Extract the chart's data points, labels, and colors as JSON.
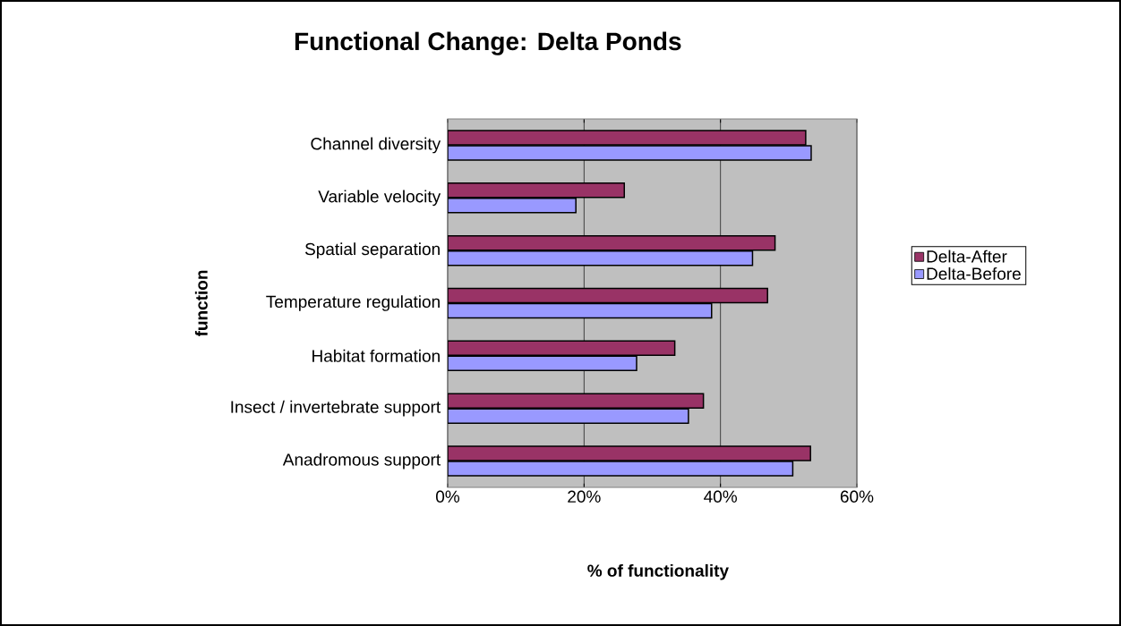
{
  "chart_data": {
    "type": "bar",
    "orientation": "horizontal",
    "title": "Functional Change: Delta Ponds",
    "xlabel": "% of functionality",
    "ylabel": "function",
    "categories": [
      "Channel diversity",
      "Variable velocity",
      "Spatial separation",
      "Temperature regulation",
      "Habitat formation",
      "Insect / invertebrate support",
      "Anadromous support"
    ],
    "series": [
      {
        "name": "Delta-After",
        "color": "#993366",
        "values": [
          52.5,
          25.9,
          48.0,
          46.9,
          33.3,
          37.5,
          53.2
        ]
      },
      {
        "name": "Delta-Before",
        "color": "#9999ff",
        "values": [
          53.3,
          18.8,
          44.7,
          38.7,
          27.7,
          35.3,
          50.6
        ]
      }
    ],
    "xlim": [
      0,
      60
    ],
    "xticks": [
      {
        "value": 0,
        "label": "0%"
      },
      {
        "value": 20,
        "label": "20%"
      },
      {
        "value": 40,
        "label": "40%"
      },
      {
        "value": 60,
        "label": "60%"
      }
    ],
    "grid": "x",
    "legend": "right"
  }
}
